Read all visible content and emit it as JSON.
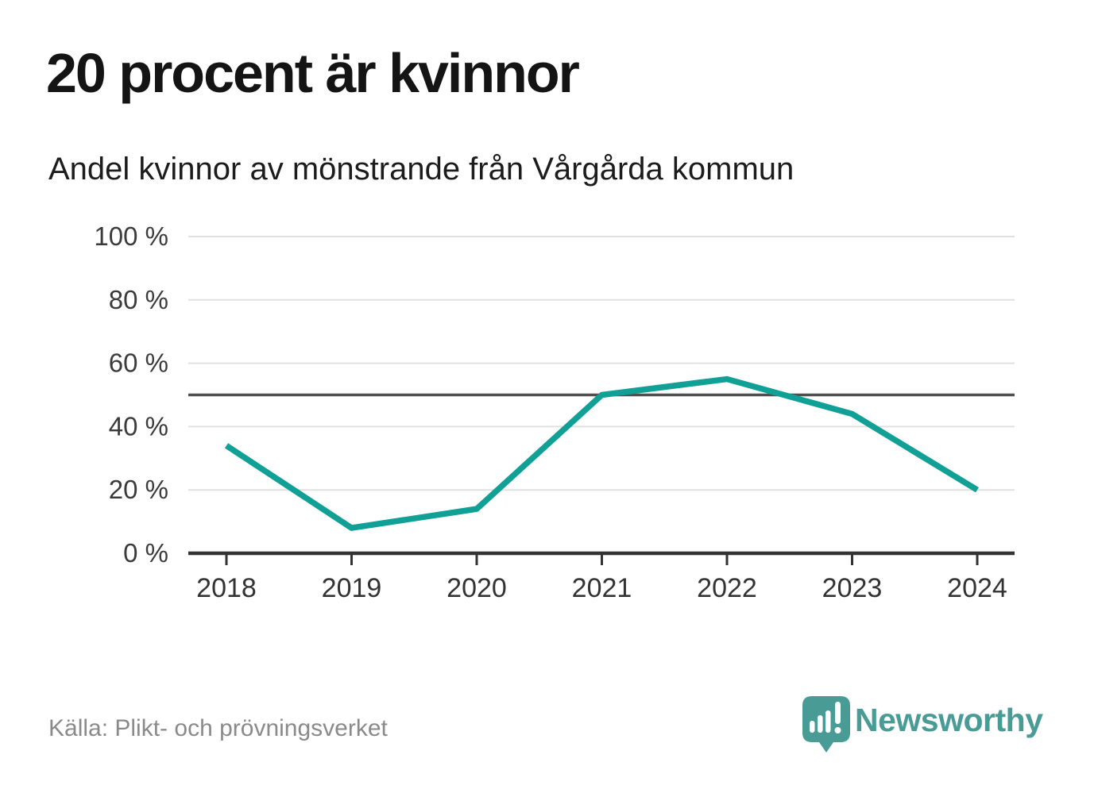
{
  "title": "20 procent är kvinnor",
  "subtitle": "Andel kvinnor av mönstrande från Vårgårda kommun",
  "source": "Källa: Plikt- och prövningsverket",
  "brand": {
    "name": "Newsworthy",
    "icon": "newsworthy-speech-bubble-bars-icon",
    "color": "#499b96"
  },
  "colors": {
    "background": "#ffffff",
    "line": "#10a096",
    "grid": "#e0e0e0",
    "reference_line": "#4f4f4f",
    "axis": "#333333",
    "tick_label": "#3b3b3b",
    "title_text": "#141414",
    "source_text": "#8a8a8a"
  },
  "chart_data": {
    "type": "line",
    "x": [
      "2018",
      "2019",
      "2020",
      "2021",
      "2022",
      "2023",
      "2024"
    ],
    "values": [
      34,
      8,
      14,
      50,
      55,
      44,
      20
    ],
    "title": "20 procent är kvinnor",
    "subtitle": "Andel kvinnor av mönstrande från Vårgårda kommun",
    "xlabel": "",
    "ylabel": "",
    "ylim": [
      0,
      100
    ],
    "yticks": [
      0,
      20,
      40,
      60,
      80,
      100
    ],
    "ytick_labels": [
      "0 %",
      "20 %",
      "40 %",
      "60 %",
      "80 %",
      "100 %"
    ],
    "ytick_suffix": " %",
    "reference_line": 50,
    "grid": "horizontal",
    "legend": "none",
    "line_width": 7.5
  }
}
